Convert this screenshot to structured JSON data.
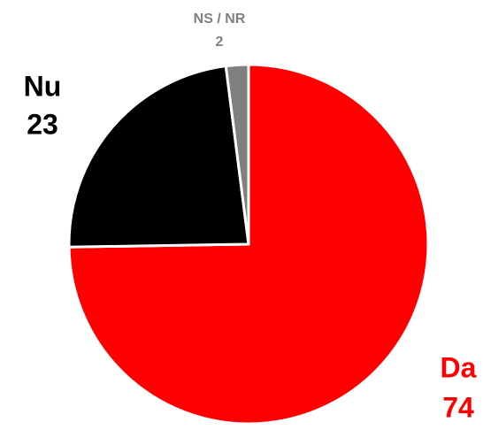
{
  "chart_data": {
    "type": "pie",
    "categories": [
      "Da",
      "Nu",
      "NS / NR"
    ],
    "values": [
      74,
      23,
      2
    ],
    "colors": [
      "#ff0000",
      "#000000",
      "#808080"
    ]
  }
}
